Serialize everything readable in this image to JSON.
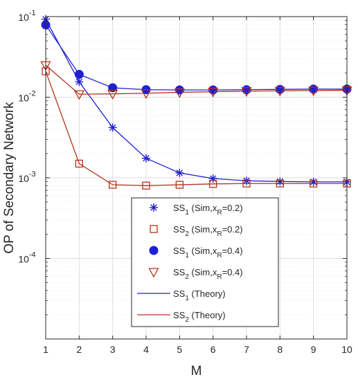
{
  "chart_data": {
    "type": "line",
    "title": "",
    "xlabel": "M",
    "ylabel": "OP of Secondary Network",
    "yscale": "log",
    "xlim": [
      1,
      10
    ],
    "ylim": [
      1e-05,
      0.1
    ],
    "grid": true,
    "legend_position": "bottom-right",
    "x": [
      1,
      2,
      3,
      4,
      5,
      6,
      7,
      8,
      9,
      10
    ],
    "xticks": [
      "1",
      "2",
      "3",
      "4",
      "5",
      "6",
      "7",
      "8",
      "9",
      "10"
    ],
    "yticks": [
      {
        "value": 0.0001,
        "base": "10",
        "exp": "-4"
      },
      {
        "value": 0.001,
        "base": "10",
        "exp": "-3"
      },
      {
        "value": 0.01,
        "base": "10",
        "exp": "-2"
      },
      {
        "value": 0.1,
        "base": "10",
        "exp": "-1"
      }
    ],
    "series": [
      {
        "label_main": "SS",
        "label_sub": "1",
        "label_rest": " (Sim,x",
        "label_sub2": "R",
        "label_end": "=0.2)",
        "marker": "star",
        "color": "#1f1fd6",
        "line": false,
        "values": [
          0.093,
          0.0155,
          0.0042,
          0.00175,
          0.00115,
          0.00098,
          0.00092,
          0.0009,
          0.00089,
          0.00089
        ]
      },
      {
        "label_main": "SS",
        "label_sub": "2",
        "label_rest": " (Sim,x",
        "label_sub2": "R",
        "label_end": "=0.2)",
        "marker": "square",
        "color": "#b5331c",
        "line": false,
        "values": [
          0.021,
          0.0015,
          0.00082,
          0.0008,
          0.00082,
          0.00084,
          0.00085,
          0.00085,
          0.00085,
          0.00085
        ]
      },
      {
        "label_main": "SS",
        "label_sub": "1",
        "label_rest": " (Sim,x",
        "label_sub2": "R",
        "label_end": "=0.4)",
        "marker": "circle",
        "color": "#1f1fd6",
        "line": false,
        "values": [
          0.079,
          0.0192,
          0.0131,
          0.0124,
          0.0123,
          0.0123,
          0.0124,
          0.0125,
          0.0126,
          0.0126
        ]
      },
      {
        "label_main": "SS",
        "label_sub": "2",
        "label_rest": " (Sim,x",
        "label_sub2": "R",
        "label_end": "=0.4)",
        "marker": "triangle",
        "color": "#b5331c",
        "line": false,
        "values": [
          0.025,
          0.0109,
          0.011,
          0.0112,
          0.0115,
          0.0117,
          0.0119,
          0.012,
          0.0121,
          0.0122
        ]
      },
      {
        "label_main": "SS",
        "label_sub": "1",
        "label_rest": " (Theory)",
        "label_sub2": "",
        "label_end": "",
        "marker": "none",
        "color": "#1f1fd6",
        "line": true,
        "values": [
          0.093,
          0.0155,
          0.0042,
          0.00175,
          0.00115,
          0.00098,
          0.00092,
          0.0009,
          0.00089,
          0.00089
        ],
        "values2": [
          0.079,
          0.0192,
          0.0131,
          0.0124,
          0.0123,
          0.0123,
          0.0124,
          0.0125,
          0.0126,
          0.0126
        ]
      },
      {
        "label_main": "SS",
        "label_sub": "2",
        "label_rest": " (Theory)",
        "label_sub2": "",
        "label_end": "",
        "marker": "none",
        "color": "#b5331c",
        "line": true,
        "values": [
          0.021,
          0.0015,
          0.00082,
          0.0008,
          0.00082,
          0.00084,
          0.00085,
          0.00085,
          0.00085,
          0.00085
        ],
        "values2": [
          0.025,
          0.0109,
          0.011,
          0.0112,
          0.0115,
          0.0117,
          0.0119,
          0.012,
          0.0121,
          0.0122
        ]
      }
    ]
  }
}
